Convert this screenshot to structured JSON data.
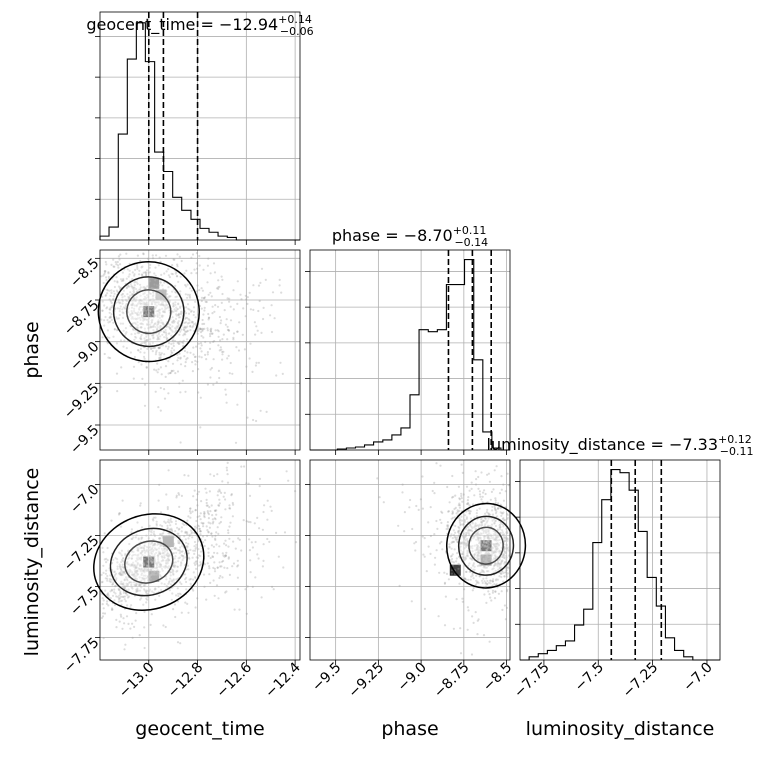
{
  "figure": {
    "type": "corner-plot",
    "parameters": [
      "geocent_time",
      "phase",
      "luminosity_distance"
    ]
  },
  "chart_data": [
    {
      "type": "histogram",
      "panel": "geocent_time",
      "title": {
        "main": "geocent_time = −12.94",
        "sup": "+0.14",
        "sub": "−0.06"
      },
      "x_ticks": [
        -13.0,
        -12.8,
        -12.6,
        -12.4
      ],
      "xlim": [
        -13.2,
        -12.38
      ],
      "bins": [
        -13.2,
        -13.163,
        -13.125,
        -13.088,
        -13.051,
        -13.014,
        -12.976,
        -12.939,
        -12.902,
        -12.865,
        -12.827,
        -12.79,
        -12.753,
        -12.716,
        -12.678,
        -12.641,
        -12.604,
        -12.567,
        -12.529,
        -12.492,
        -12.455,
        -12.418,
        -12.38
      ],
      "counts": [
        0.3,
        1.0,
        8.2,
        14.0,
        16.8,
        13.8,
        6.8,
        5.3,
        3.3,
        2.3,
        1.6,
        0.9,
        0.6,
        0.3,
        0.2,
        0.0,
        0.0,
        0.0,
        0.0,
        0.0,
        0.0,
        0.0
      ],
      "quantiles": [
        -13.0,
        -12.94,
        -12.8
      ],
      "grid": true
    },
    {
      "type": "histogram",
      "panel": "phase",
      "title": {
        "main": "phase = −8.70",
        "sup": "+0.11",
        "sub": "−0.14"
      },
      "x_ticks": [
        -9.5,
        -9.25,
        -9.0,
        -8.75,
        -8.5
      ],
      "xlim": [
        -9.65,
        -8.48
      ],
      "bins": [
        -9.65,
        -9.597,
        -9.544,
        -9.49,
        -9.437,
        -9.384,
        -9.331,
        -9.278,
        -9.224,
        -9.171,
        -9.118,
        -9.065,
        -9.012,
        -8.958,
        -8.905,
        -8.852,
        -8.799,
        -8.746,
        -8.692,
        -8.639,
        -8.586,
        -8.533,
        -8.48
      ],
      "counts": [
        0.0,
        0.0,
        0.0,
        0.1,
        0.2,
        0.3,
        0.5,
        0.8,
        1.0,
        1.5,
        2.2,
        5.5,
        12.0,
        11.8,
        12.0,
        16.5,
        16.5,
        19.0,
        9.0,
        1.8,
        0.2,
        0.0
      ],
      "quantiles": [
        -8.84,
        -8.7,
        -8.59
      ],
      "grid": true
    },
    {
      "type": "histogram",
      "panel": "luminosity_distance",
      "title": {
        "main": "luminosity_distance = −7.33",
        "sup": "+0.12",
        "sub": "−0.11"
      },
      "x_ticks": [
        -7.75,
        -7.5,
        -7.25,
        -7.0
      ],
      "xlim": [
        -7.86,
        -6.94
      ],
      "bins": [
        -7.86,
        -7.818,
        -7.776,
        -7.734,
        -7.693,
        -7.651,
        -7.609,
        -7.567,
        -7.525,
        -7.484,
        -7.442,
        -7.4,
        -7.358,
        -7.316,
        -7.275,
        -7.233,
        -7.191,
        -7.149,
        -7.107,
        -7.065,
        -7.024,
        -6.982,
        -6.94
      ],
      "counts": [
        0.0,
        0.2,
        0.4,
        0.6,
        0.9,
        1.2,
        2.2,
        3.2,
        7.4,
        10.1,
        12.0,
        11.8,
        10.7,
        8.1,
        5.2,
        3.4,
        1.4,
        0.6,
        0.2,
        0.0,
        0.0,
        0.0
      ],
      "quantiles": [
        -7.44,
        -7.33,
        -7.21
      ],
      "grid": true
    },
    {
      "type": "scatter-density",
      "x_param": "geocent_time",
      "y_param": "phase",
      "xlim": [
        -13.2,
        -12.38
      ],
      "ylim": [
        -9.65,
        -8.45
      ],
      "y_ticks": [
        -8.5,
        -8.75,
        -9.0,
        -9.25,
        -9.5
      ],
      "peak": [
        -13.0,
        -8.82
      ],
      "spread": [
        0.09,
        0.13
      ],
      "correlation": -0.45,
      "contour_sigmas": [
        1.0,
        1.6,
        2.3
      ],
      "density_blocks": [
        {
          "x": -12.98,
          "y": -8.65,
          "level": 0.55
        },
        {
          "x": -12.95,
          "y": -8.72,
          "level": 0.35
        },
        {
          "x": -13.0,
          "y": -8.82,
          "level": 1.0
        }
      ]
    },
    {
      "type": "scatter-density",
      "x_param": "geocent_time",
      "y_param": "luminosity_distance",
      "xlim": [
        -13.2,
        -12.38
      ],
      "ylim": [
        -7.86,
        -6.88
      ],
      "y_ticks": [
        -7.0,
        -7.25,
        -7.5,
        -7.75
      ],
      "peak": [
        -13.0,
        -7.38
      ],
      "spread": [
        0.1,
        0.1
      ],
      "correlation": 0.7,
      "contour_sigmas": [
        1.0,
        1.6,
        2.3
      ],
      "density_blocks": [
        {
          "x": -12.92,
          "y": -7.28,
          "level": 0.4
        },
        {
          "x": -13.0,
          "y": -7.38,
          "level": 1.0
        },
        {
          "x": -12.98,
          "y": -7.45,
          "level": 0.6
        }
      ]
    },
    {
      "type": "scatter-density",
      "x_param": "phase",
      "y_param": "luminosity_distance",
      "xlim": [
        -9.65,
        -8.48
      ],
      "ylim": [
        -7.86,
        -6.88
      ],
      "peak": [
        -8.62,
        -7.3
      ],
      "spread": [
        0.1,
        0.09
      ],
      "correlation": -0.15,
      "contour_sigmas": [
        1.0,
        1.6,
        2.3
      ],
      "density_blocks": [
        {
          "x": -8.62,
          "y": -7.3,
          "level": 1.0
        },
        {
          "x": -8.62,
          "y": -7.37,
          "level": 0.6
        },
        {
          "x": -8.8,
          "y": -7.42,
          "level": 0.85
        }
      ]
    }
  ],
  "axis_labels": {
    "geocent_time": "geocent_time",
    "phase": "phase",
    "luminosity_distance": "luminosity_distance"
  },
  "colors": {
    "line": "#000000",
    "grid": "#b0b0b0",
    "points": "#9a9a9a"
  }
}
